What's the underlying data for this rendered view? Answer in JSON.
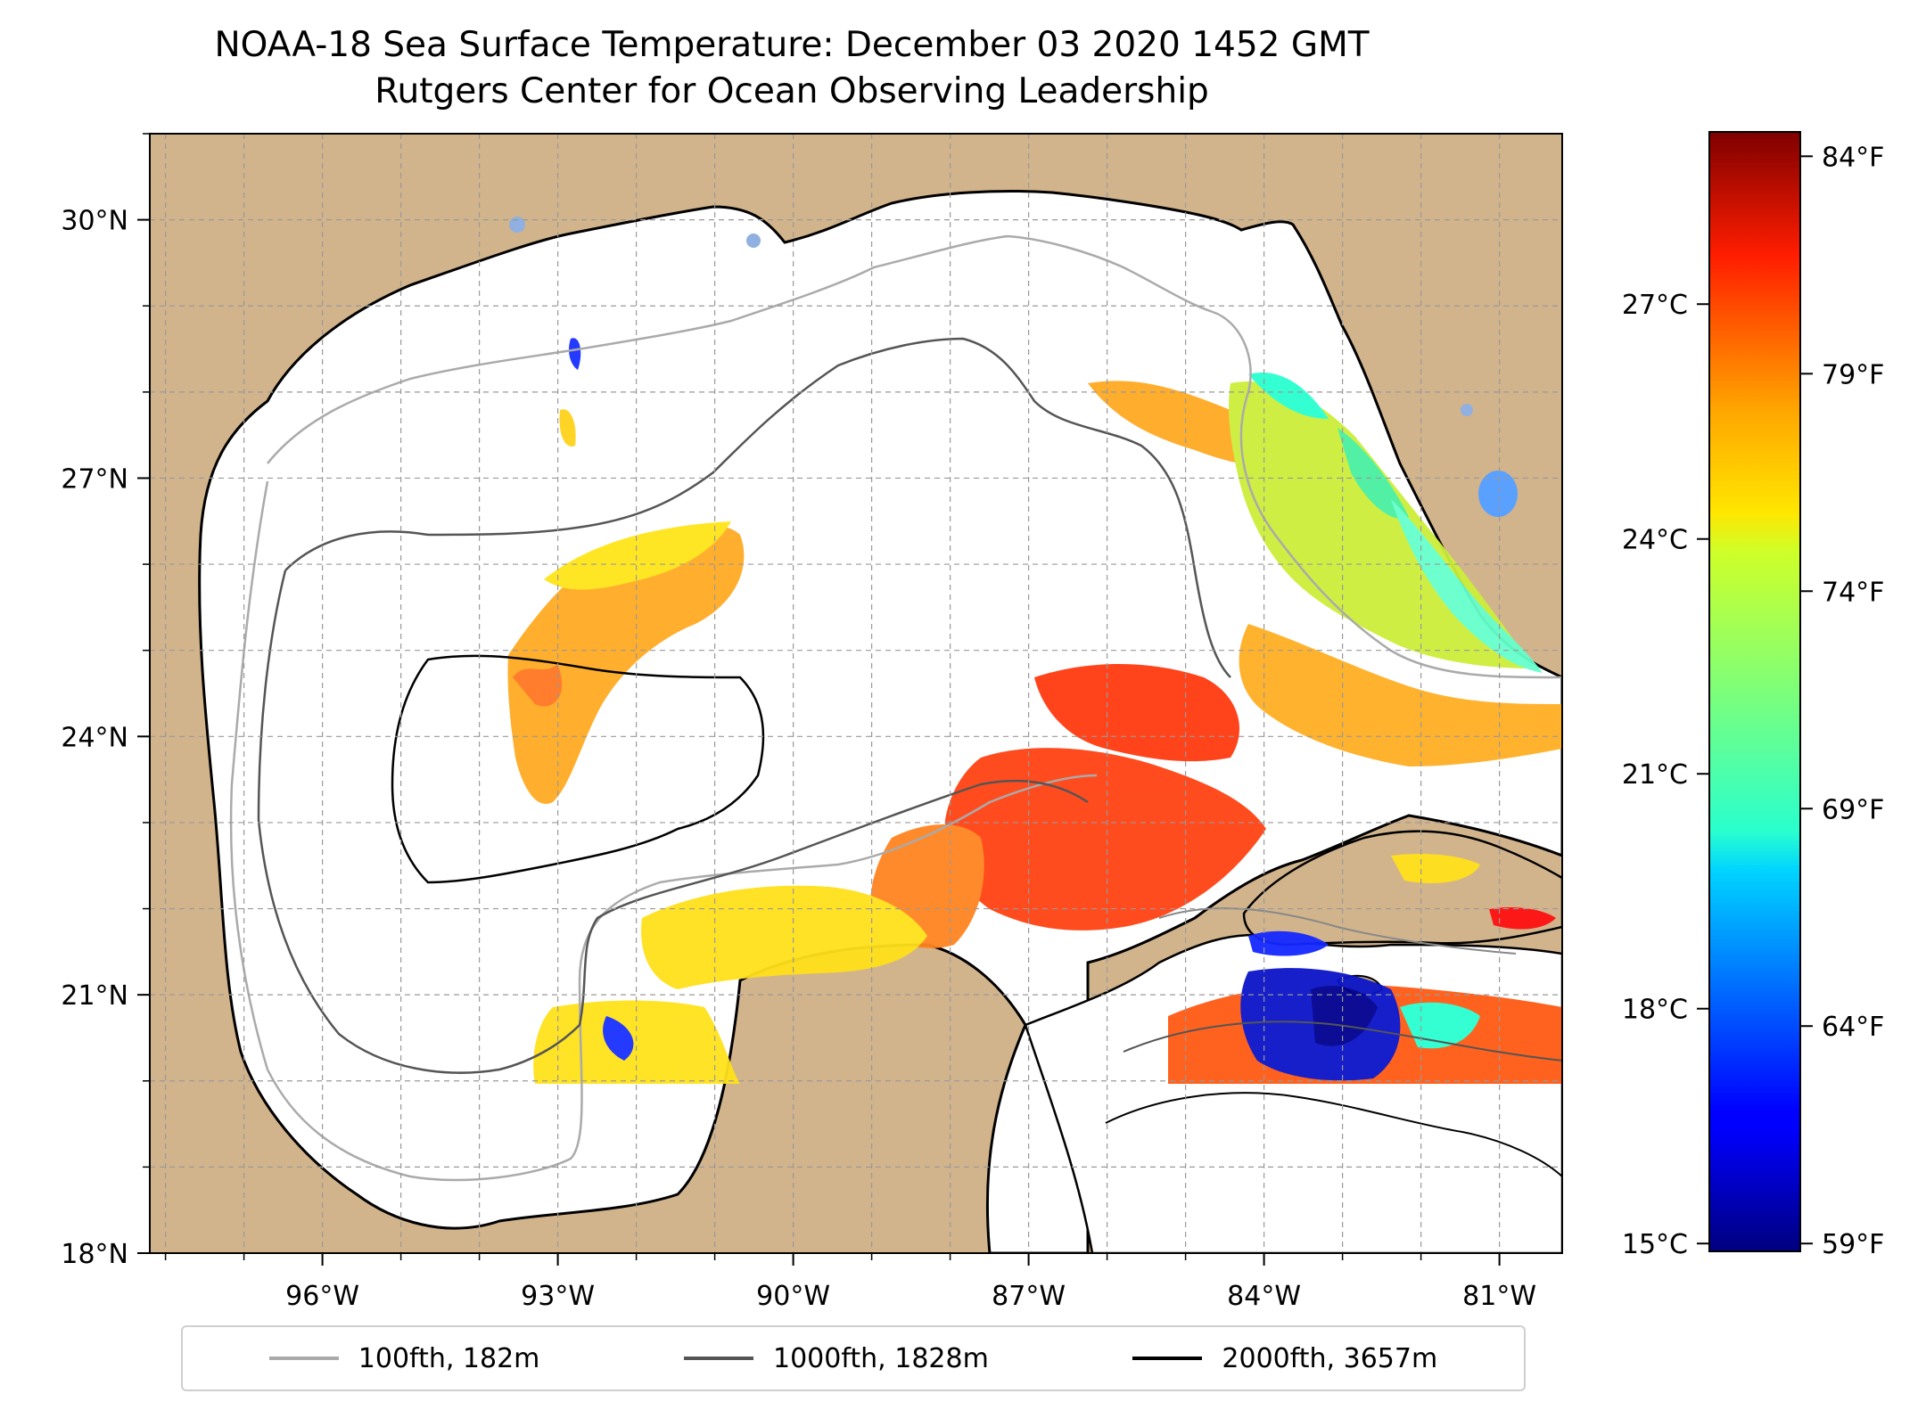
{
  "title": {
    "line1": "NOAA-18 Sea Surface Temperature: December 03 2020 1452 GMT",
    "line2": "Rutgers Center for Ocean Observing Leadership"
  },
  "map": {
    "extent": {
      "lon_min": -98.2,
      "lon_max": -80.2,
      "lat_min": 18.0,
      "lat_max": 31.0
    },
    "lon_ticks": [
      {
        "value": -96,
        "label": "96°W"
      },
      {
        "value": -93,
        "label": "93°W"
      },
      {
        "value": -90,
        "label": "90°W"
      },
      {
        "value": -87,
        "label": "87°W"
      },
      {
        "value": -84,
        "label": "84°W"
      },
      {
        "value": -81,
        "label": "81°W"
      }
    ],
    "lat_ticks": [
      {
        "value": 18,
        "label": "18°N"
      },
      {
        "value": 21,
        "label": "21°N"
      },
      {
        "value": 24,
        "label": "24°N"
      },
      {
        "value": 27,
        "label": "27°N"
      },
      {
        "value": 30,
        "label": "30°N"
      }
    ],
    "grid": true,
    "land_color": "#d2b48c",
    "ocean_color": "#ffffff"
  },
  "colorbar": {
    "celsius": [
      {
        "value": 15,
        "label": "15°C"
      },
      {
        "value": 18,
        "label": "18°C"
      },
      {
        "value": 21,
        "label": "21°C"
      },
      {
        "value": 24,
        "label": "24°C"
      },
      {
        "value": 27,
        "label": "27°C"
      }
    ],
    "fahrenheit": [
      {
        "value": 59,
        "label": "59°F"
      },
      {
        "value": 64,
        "label": "64°F"
      },
      {
        "value": 69,
        "label": "69°F"
      },
      {
        "value": 74,
        "label": "74°F"
      },
      {
        "value": 79,
        "label": "79°F"
      },
      {
        "value": 84,
        "label": "84°F"
      }
    ],
    "range_c": [
      14.9,
      29.2
    ],
    "colormap": "jet"
  },
  "legend": [
    {
      "label": "100fth, 182m",
      "color": "#aaaaaa"
    },
    {
      "label": "1000fth, 1828m",
      "color": "#555555"
    },
    {
      "label": "2000fth, 3657m",
      "color": "#000000"
    }
  ]
}
